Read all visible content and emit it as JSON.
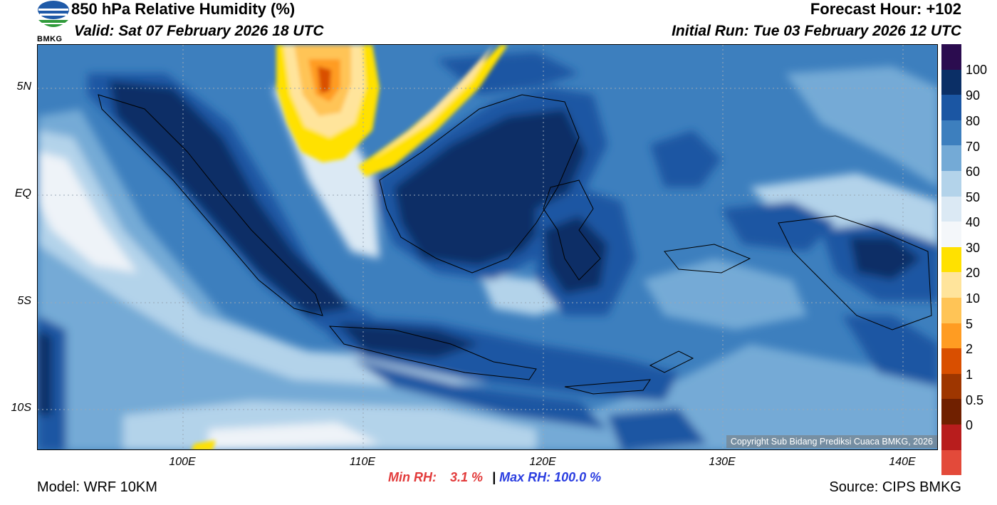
{
  "header": {
    "title": "850 hPa Relative Humidity (%)",
    "valid": "Valid: Sat 07 February 2026 18 UTC",
    "forecast_hour": "Forecast Hour: +102",
    "initial_run": "Initial Run: Tue 03 February 2026 12 UTC"
  },
  "logo": {
    "text": "BMKG"
  },
  "axes": {
    "lat_labels": [
      "5N",
      "EQ",
      "5S",
      "10S"
    ],
    "lon_labels": [
      "100E",
      "110E",
      "120E",
      "130E",
      "140E"
    ]
  },
  "colorbar": {
    "labels": [
      "100",
      "90",
      "80",
      "70",
      "60",
      "50",
      "40",
      "30",
      "20",
      "10",
      "5",
      "2",
      "1",
      "0.5",
      "0"
    ],
    "colors": [
      "#2b0c4f",
      "#0b2f66",
      "#1b56a3",
      "#3d7fbe",
      "#74aad6",
      "#b3d3ea",
      "#dbe9f4",
      "#f4f7fa",
      "#ffe100",
      "#ffe49b",
      "#ffc456",
      "#ff9c22",
      "#d94f00",
      "#9e3600",
      "#702000",
      "#b81d1d",
      "#e34a3a"
    ]
  },
  "copyright": "Copyright Sub Bidang Prediksi Cuaca BMKG, 2026",
  "stats": {
    "min_label": "Min RH:",
    "min_value": "3.1 %",
    "separator": "|",
    "max_label": "Max RH:",
    "max_value": "100.0 %"
  },
  "footer": {
    "model": "Model: WRF 10KM",
    "source": "Source: CIPS BMKG"
  }
}
